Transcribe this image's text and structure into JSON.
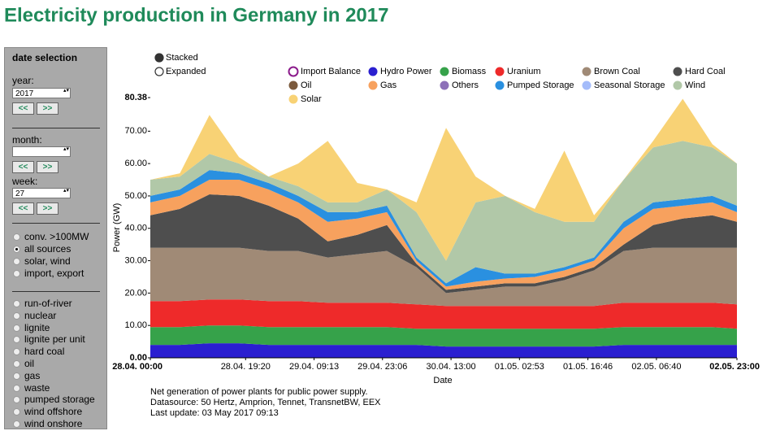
{
  "header": {
    "title": "Electricity production in Germany in 2017"
  },
  "sidebar": {
    "title": "date selection",
    "year_label": "year:",
    "year_value": "2017",
    "month_label": "month:",
    "week_label": "week:",
    "week_value": "27",
    "prev": "<<",
    "next": ">>",
    "source_options": [
      "conv. >100MW",
      "all sources",
      "solar, wind",
      "import, export"
    ],
    "selected_source": 1,
    "unit_options": [
      "run-of-river",
      "nuclear",
      "lignite",
      "lignite per unit",
      "hard coal",
      "oil",
      "gas",
      "waste",
      "pumped storage",
      "wind offshore",
      "wind onshore"
    ]
  },
  "view": {
    "options": [
      "Stacked",
      "Expanded"
    ],
    "selected": 0
  },
  "notes": [
    "Net generation of power plants for public power supply.",
    "Datasource: 50 Hertz, Amprion, Tennet, TransnetBW, EEX",
    "Last update: 03 May 2017 09:13"
  ],
  "chart_data": {
    "type": "stacked-area",
    "x_label": "Date",
    "y_label": "Power (GW)",
    "x": [
      0,
      6,
      12,
      18,
      24,
      30,
      36,
      42,
      48,
      54,
      60,
      66,
      72,
      78,
      84,
      90,
      96,
      102,
      108,
      114,
      119
    ],
    "xlim": [
      0,
      119
    ],
    "xticks": [
      {
        "value": 0,
        "label": "28.04. 00:00"
      },
      {
        "value": 19.33,
        "label": "28.04. 19:20"
      },
      {
        "value": 33.22,
        "label": "29.04. 09:13"
      },
      {
        "value": 47.1,
        "label": "29.04. 23:06"
      },
      {
        "value": 61,
        "label": "30.04. 13:00"
      },
      {
        "value": 74.88,
        "label": "01.05. 02:53"
      },
      {
        "value": 88.77,
        "label": "01.05. 16:46"
      },
      {
        "value": 102.67,
        "label": "02.05. 06:40"
      },
      {
        "value": 119,
        "label": "02.05. 23:00"
      }
    ],
    "ylim": [
      0,
      80.38
    ],
    "yticks": [
      {
        "value": 0,
        "label": "0.00"
      },
      {
        "value": 10,
        "label": "10.00"
      },
      {
        "value": 20,
        "label": "20.00"
      },
      {
        "value": 30,
        "label": "30.00"
      },
      {
        "value": 40,
        "label": "40.00"
      },
      {
        "value": 50,
        "label": "50.00"
      },
      {
        "value": 60,
        "label": "60.00"
      },
      {
        "value": 70,
        "label": "70.00"
      },
      {
        "value": 80.38,
        "label": "80.38"
      }
    ],
    "series": [
      {
        "name": "Import Balance",
        "color": "#8b1a8b",
        "hollow": true,
        "values": [
          null,
          null,
          null,
          null,
          null,
          null,
          null,
          null,
          null,
          null,
          null,
          null,
          null,
          null,
          null,
          null,
          null,
          null,
          null,
          null,
          null
        ]
      },
      {
        "name": "Hydro Power",
        "color": "#2a1fd0",
        "values": [
          4,
          4,
          4.5,
          4.5,
          4,
          4,
          4,
          4,
          4,
          4,
          3.5,
          3.5,
          3.5,
          3.5,
          3.5,
          3.5,
          4,
          4,
          4,
          4,
          4
        ]
      },
      {
        "name": "Biomass",
        "color": "#36a24a",
        "values": [
          5.5,
          5.5,
          5.5,
          5.5,
          5.5,
          5.5,
          5.5,
          5.5,
          5.5,
          5,
          5.5,
          5.5,
          5.5,
          5.5,
          5.5,
          5.5,
          5.5,
          5.5,
          5.5,
          5.5,
          5
        ]
      },
      {
        "name": "Uranium",
        "color": "#ee2a2a",
        "values": [
          8,
          8,
          8,
          8,
          8,
          8,
          7.5,
          7.5,
          7.5,
          7.5,
          7,
          7,
          7,
          7,
          7,
          7,
          7.5,
          7.5,
          7.5,
          7.5,
          7.5
        ]
      },
      {
        "name": "Brown Coal",
        "color": "#a08a76",
        "values": [
          16.5,
          16.5,
          16,
          16,
          15.5,
          15.5,
          14,
          15,
          16,
          11.5,
          4,
          5,
          6,
          6,
          8,
          11,
          16,
          17,
          17,
          17,
          17.5
        ]
      },
      {
        "name": "Hard Coal",
        "color": "#4e4e4e",
        "values": [
          10,
          12,
          16.5,
          16,
          14,
          10,
          5,
          6,
          8,
          1,
          1,
          1,
          1,
          1,
          1,
          1,
          2,
          7,
          9,
          10,
          8
        ]
      },
      {
        "name": "Oil",
        "color": "#7b5a3c",
        "values": [
          0,
          0,
          0,
          0,
          0,
          0,
          0,
          0,
          0,
          0,
          0,
          0,
          0,
          0,
          0,
          0,
          0,
          0,
          0,
          0,
          0
        ]
      },
      {
        "name": "Gas",
        "color": "#f7a15e",
        "values": [
          4,
          4,
          4.5,
          5,
          5,
          5,
          6,
          5,
          4,
          1,
          1,
          1.5,
          1.5,
          2,
          2,
          2,
          5,
          5,
          4,
          4,
          3
        ]
      },
      {
        "name": "Others",
        "color": "#8d70b8",
        "values": [
          0,
          0,
          0,
          0,
          0,
          0,
          0,
          0,
          0,
          0,
          0,
          0,
          0,
          0,
          0,
          0,
          0,
          0,
          0,
          0,
          0
        ]
      },
      {
        "name": "Pumped Storage",
        "color": "#2a90e0",
        "values": [
          2,
          2,
          3,
          2,
          2,
          2,
          3,
          2,
          2,
          1,
          1,
          4.5,
          1.5,
          1,
          1,
          1,
          2,
          2,
          2,
          2,
          2
        ]
      },
      {
        "name": "Seasonal Storage",
        "color": "#a4bcfa",
        "values": [
          0,
          0,
          0,
          0,
          0,
          0,
          0,
          0,
          0,
          0,
          0,
          0,
          0,
          0,
          0,
          0,
          0,
          0,
          0,
          0,
          0
        ]
      },
      {
        "name": "Wind",
        "color": "#b1c8a8",
        "values": [
          5,
          4,
          5,
          3,
          2,
          3,
          3,
          3,
          5,
          14,
          7,
          20,
          24,
          19,
          14,
          11,
          13,
          17,
          18,
          15,
          13
        ]
      },
      {
        "name": "Solar",
        "color": "#f8d275",
        "values": [
          0,
          1,
          12,
          2,
          0,
          7,
          19,
          6,
          0,
          3,
          41,
          8,
          0,
          1,
          22,
          2,
          0,
          2,
          13,
          1,
          0
        ]
      }
    ]
  }
}
